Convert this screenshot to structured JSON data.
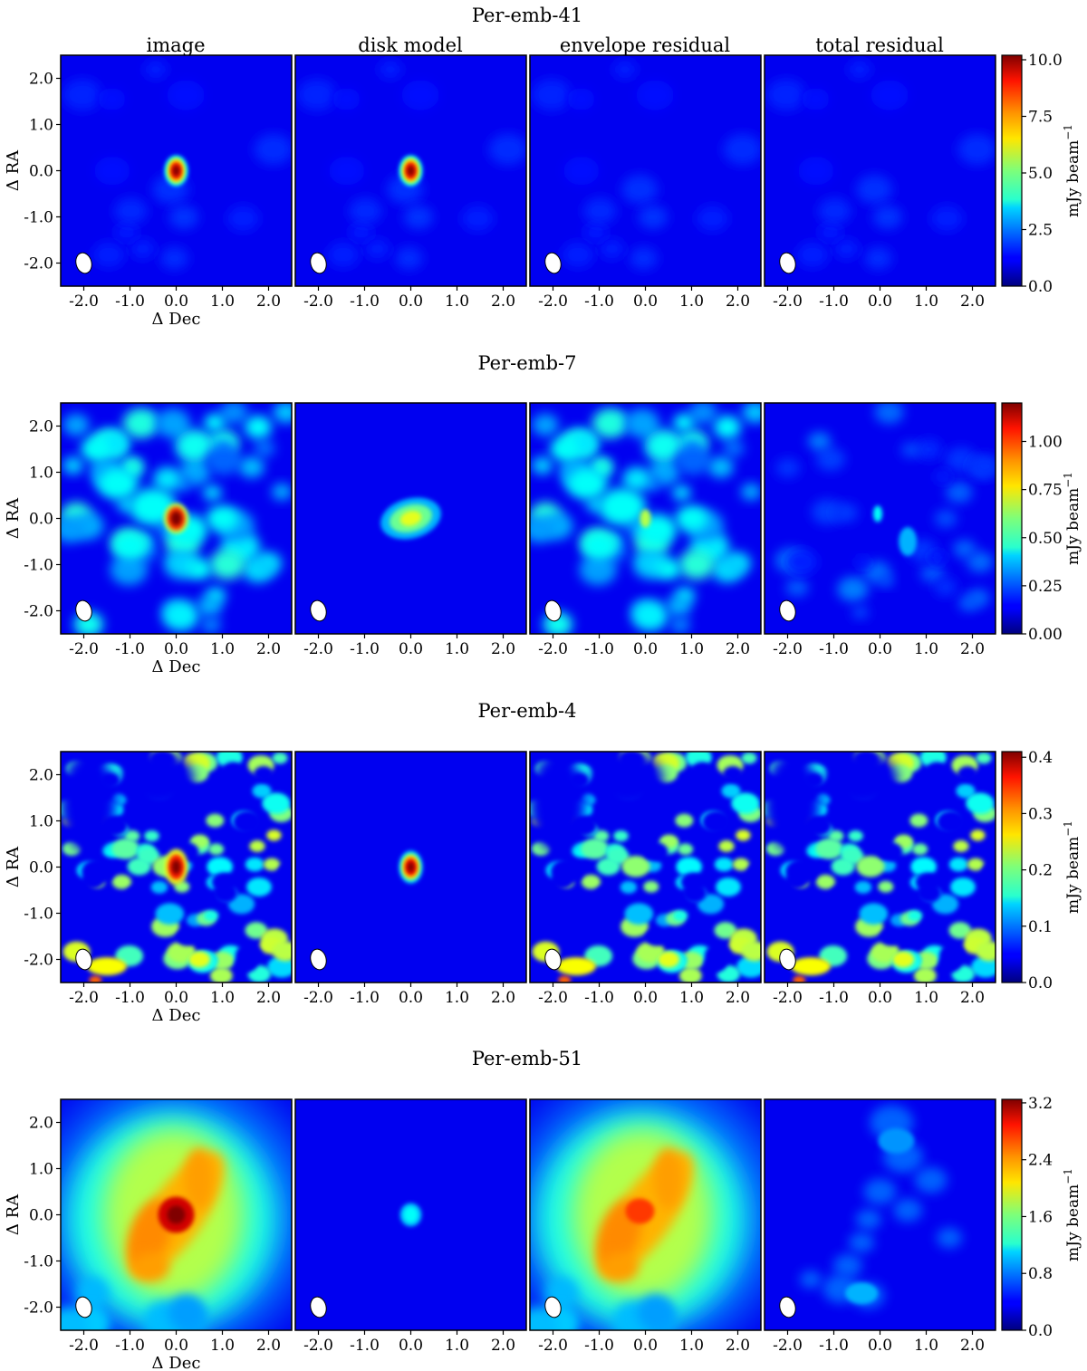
{
  "figure": {
    "column_titles": [
      "image",
      "disk model",
      "envelope residual",
      "total residual"
    ],
    "xlabel": "Δ Dec",
    "ylabel": "Δ RA",
    "colorbar_label": "mJy beam",
    "colorbar_label_sup": "−1",
    "colormap": "jet",
    "beam_fill": "#ffffff"
  },
  "chart_data": [
    {
      "type": "heatmap",
      "title": "Per-emb-41",
      "panels": [
        "image",
        "disk model",
        "envelope residual",
        "total residual"
      ],
      "xlim": [
        -2.5,
        2.5
      ],
      "ylim": [
        -2.5,
        2.5
      ],
      "xticks": [
        "-2.0",
        "-1.0",
        "0.0",
        "1.0",
        "2.0"
      ],
      "yticks": [
        "2.0",
        "1.0",
        "0.0",
        "-1.0",
        "-2.0"
      ],
      "colorbar": {
        "min": 0.0,
        "max": 10.2,
        "ticks": [
          "10.0",
          "7.5",
          "5.0",
          "2.5",
          "0.0"
        ],
        "tick_values": [
          10.0,
          7.5,
          5.0,
          2.5,
          0.0
        ]
      },
      "peak": 10.0,
      "beam_center": [
        -2.0,
        -2.0
      ]
    },
    {
      "type": "heatmap",
      "title": "Per-emb-7",
      "panels": [
        "image",
        "disk model",
        "envelope residual",
        "total residual"
      ],
      "xlim": [
        -2.5,
        2.5
      ],
      "ylim": [
        -2.5,
        2.5
      ],
      "xticks": [
        "-2.0",
        "-1.0",
        "0.0",
        "1.0",
        "2.0"
      ],
      "yticks": [
        "2.0",
        "1.0",
        "0.0",
        "-1.0",
        "-2.0"
      ],
      "colorbar": {
        "min": 0.0,
        "max": 1.2,
        "ticks": [
          "1.00",
          "0.75",
          "0.50",
          "0.25",
          "0.00"
        ],
        "tick_values": [
          1.0,
          0.75,
          0.5,
          0.25,
          0.0
        ]
      },
      "peak": 1.15,
      "beam_center": [
        -2.0,
        -2.0
      ]
    },
    {
      "type": "heatmap",
      "title": "Per-emb-4",
      "panels": [
        "image",
        "disk model",
        "envelope residual",
        "total residual"
      ],
      "xlim": [
        -2.5,
        2.5
      ],
      "ylim": [
        -2.5,
        2.5
      ],
      "xticks": [
        "-2.0",
        "-1.0",
        "0.0",
        "1.0",
        "2.0"
      ],
      "yticks": [
        "2.0",
        "1.0",
        "0.0",
        "-1.0",
        "-2.0"
      ],
      "colorbar": {
        "min": 0.0,
        "max": 0.41,
        "ticks": [
          "0.4",
          "0.3",
          "0.2",
          "0.1",
          "0.0"
        ],
        "tick_values": [
          0.4,
          0.3,
          0.2,
          0.1,
          0.0
        ]
      },
      "peak": 0.4,
      "beam_center": [
        -2.0,
        -2.0
      ]
    },
    {
      "type": "heatmap",
      "title": "Per-emb-51",
      "panels": [
        "image",
        "disk model",
        "envelope residual",
        "total residual"
      ],
      "xlim": [
        -2.5,
        2.5
      ],
      "ylim": [
        -2.5,
        2.5
      ],
      "xticks": [
        "-2.0",
        "-1.0",
        "0.0",
        "1.0",
        "2.0"
      ],
      "yticks": [
        "2.0",
        "1.0",
        "0.0",
        "-1.0",
        "-2.0"
      ],
      "colorbar": {
        "min": 0.0,
        "max": 3.25,
        "ticks": [
          "3.2",
          "2.4",
          "1.6",
          "0.8",
          "0.0"
        ],
        "tick_values": [
          3.2,
          2.4,
          1.6,
          0.8,
          0.0
        ]
      },
      "peak": 3.2,
      "beam_center": [
        -2.0,
        -2.0
      ]
    }
  ]
}
